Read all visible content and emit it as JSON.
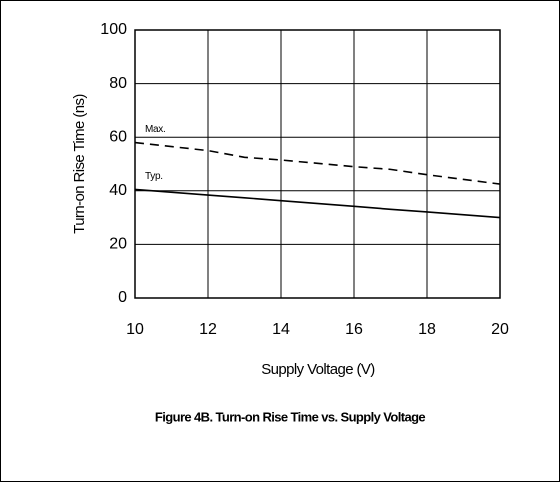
{
  "chart_data": {
    "type": "line",
    "title": "Figure 4B. Turn-on Rise Time vs. Supply Voltage",
    "x_label": "Supply Voltage (V)",
    "y_label": "Turn-on Rise Time (ns)",
    "annotations": [
      "Max.",
      "Typ."
    ],
    "x": [
      10,
      12,
      13,
      14,
      16,
      17,
      18,
      20
    ],
    "series": [
      {
        "name": "Max.",
        "color": "#000000",
        "dash": true,
        "values": [
          58,
          55,
          52.5,
          51.5,
          49,
          48,
          46,
          42.5
        ]
      },
      {
        "name": "Typ.",
        "color": "#000000",
        "dash": false,
        "values": [
          40.5,
          38.4,
          37.4,
          36.3,
          34.2,
          33.1,
          32.1,
          30
        ]
      }
    ],
    "xlim": [
      10,
      20
    ],
    "xticks": [
      10,
      12,
      14,
      16,
      18,
      20
    ],
    "ylim": [
      0,
      100
    ],
    "yticks": [
      0,
      20,
      40,
      60,
      80,
      100
    ],
    "grid": true
  }
}
